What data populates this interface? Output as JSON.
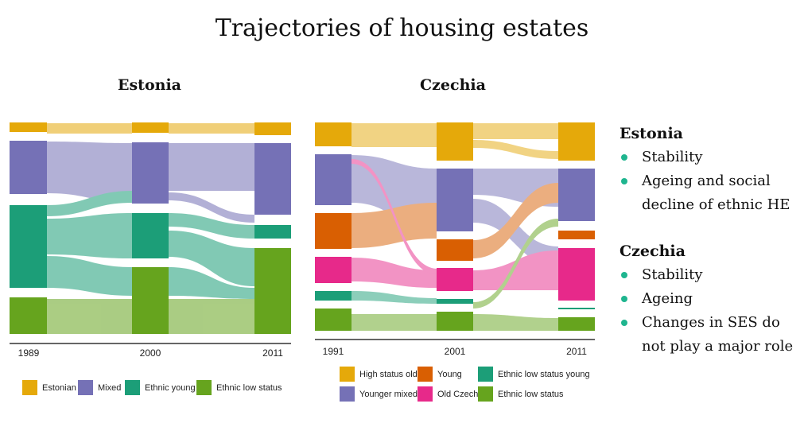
{
  "title": "Trajectories of housing estates",
  "estonia": {
    "heading": "Estonia",
    "years": [
      "1989",
      "2000",
      "2011"
    ],
    "legend": [
      {
        "label": "Estonian",
        "color": "#e5a90a"
      },
      {
        "label": "Mixed",
        "color": "#7571b6"
      },
      {
        "label": "Ethnic young",
        "color": "#1c9e78"
      },
      {
        "label": "Ethnic low status",
        "color": "#66a41e"
      }
    ]
  },
  "czechia": {
    "heading": "Czechia",
    "years": [
      "1991",
      "2001",
      "2011"
    ],
    "legend": [
      {
        "label": "High status old",
        "color": "#e5a90a"
      },
      {
        "label": "Young",
        "color": "#d95f02"
      },
      {
        "label": "Ethnic low status young",
        "color": "#1c9e78"
      },
      {
        "label": "Younger mixed",
        "color": "#7571b6"
      },
      {
        "label": "Old Czech",
        "color": "#e7298a"
      },
      {
        "label": "Ethnic low status",
        "color": "#66a41e"
      }
    ]
  },
  "summary": {
    "estonia": {
      "heading": "Estonia",
      "points": [
        "Stability",
        "Ageing and social decline of ethnic HE"
      ]
    },
    "czechia": {
      "heading": "Czechia",
      "points": [
        "Stability",
        "Ageing",
        "Changes in SES do not play a major role"
      ]
    }
  }
}
